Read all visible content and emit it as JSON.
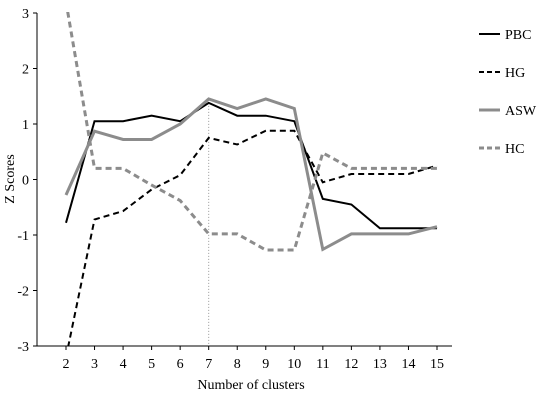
{
  "chart_data": {
    "type": "line",
    "title": "",
    "xlabel": "Number of clusters",
    "ylabel": "Z Scores",
    "x": [
      2,
      3,
      4,
      5,
      6,
      7,
      8,
      9,
      10,
      11,
      12,
      13,
      14,
      15
    ],
    "xlim": [
      2,
      15
    ],
    "ylim": [
      -3,
      3
    ],
    "yticks": [
      -3,
      -2,
      -1,
      0,
      1,
      2,
      3
    ],
    "grid": false,
    "legend_position": "right",
    "reference_line_x": 7,
    "series": [
      {
        "name": "PBC",
        "color": "#000000",
        "dash": "solid",
        "values": [
          -0.78,
          1.05,
          1.05,
          1.15,
          1.05,
          1.38,
          1.15,
          1.15,
          1.05,
          -0.35,
          -0.45,
          -0.88,
          -0.88,
          -0.88
        ]
      },
      {
        "name": "HG",
        "color": "#000000",
        "dash": "dashed",
        "values": [
          -3.2,
          -0.72,
          -0.57,
          -0.18,
          0.08,
          0.75,
          0.63,
          0.88,
          0.88,
          -0.05,
          0.1,
          0.1,
          0.1,
          0.25
        ]
      },
      {
        "name": "ASW",
        "color": "#8c8c8c",
        "dash": "solid",
        "values": [
          -0.28,
          0.87,
          0.72,
          0.72,
          1.0,
          1.45,
          1.28,
          1.45,
          1.28,
          -1.26,
          -0.98,
          -0.98,
          -0.98,
          -0.85
        ]
      },
      {
        "name": "HC",
        "color": "#8c8c8c",
        "dash": "dashed",
        "values": [
          3.2,
          0.2,
          0.2,
          -0.1,
          -0.38,
          -0.98,
          -0.98,
          -1.27,
          -1.27,
          0.48,
          0.2,
          0.2,
          0.2,
          0.2
        ]
      }
    ]
  }
}
